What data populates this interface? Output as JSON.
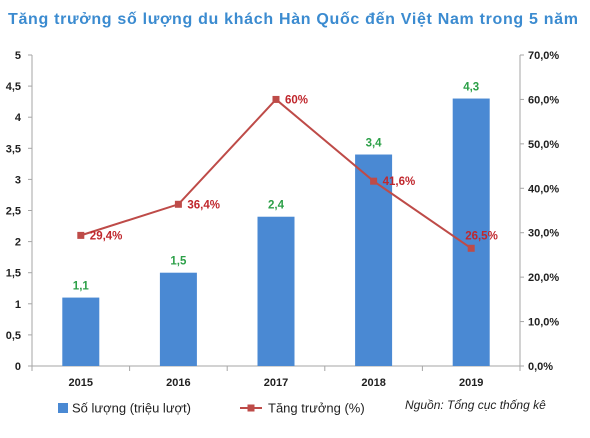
{
  "chart_data": {
    "type": "bar",
    "title": "Tăng trưởng số lượng du khách Hàn Quốc đến Việt Nam trong 5 năm",
    "categories": [
      "2015",
      "2016",
      "2017",
      "2018",
      "2019"
    ],
    "series": [
      {
        "name": "Số lượng (triệu lượt)",
        "type": "bar",
        "axis": "left",
        "values": [
          1.1,
          1.5,
          2.4,
          3.4,
          4.3
        ],
        "data_labels": [
          "1,1",
          "1,5",
          "2,4",
          "3,4",
          "4,3"
        ],
        "color": "#4a89d3",
        "label_color": "#2ca048"
      },
      {
        "name": "Tăng trưởng (%)",
        "type": "line",
        "axis": "right",
        "values": [
          29.4,
          36.4,
          60,
          41.6,
          26.5
        ],
        "data_labels": [
          "29,4%",
          "36,4%",
          "60%",
          "41,6%",
          "26,5%"
        ],
        "color": "#be4b48",
        "label_color": "#c0272d"
      }
    ],
    "y_left": {
      "ylim": [
        0,
        5
      ],
      "ticks": [
        0,
        0.5,
        1,
        1.5,
        2,
        2.5,
        3,
        3.5,
        4,
        4.5,
        5
      ],
      "tick_labels": [
        "0",
        "0,5",
        "1",
        "1,5",
        "2",
        "2,5",
        "3",
        "3,5",
        "4",
        "4,5",
        "5"
      ]
    },
    "y_right": {
      "ylim": [
        0,
        70
      ],
      "ticks": [
        0,
        10,
        20,
        30,
        40,
        50,
        60,
        70
      ],
      "tick_labels": [
        "0,0%",
        "10,0%",
        "20,0%",
        "30,0%",
        "40,0%",
        "50,0%",
        "60,0%",
        "70,0%"
      ]
    },
    "grid": false,
    "legend": "bottom-left",
    "source": "Nguồn: Tổng cục thống kê"
  },
  "colors": {
    "title": "#3b8bd0",
    "axis": "#a6a6a6",
    "text": "#1f1f1f"
  }
}
